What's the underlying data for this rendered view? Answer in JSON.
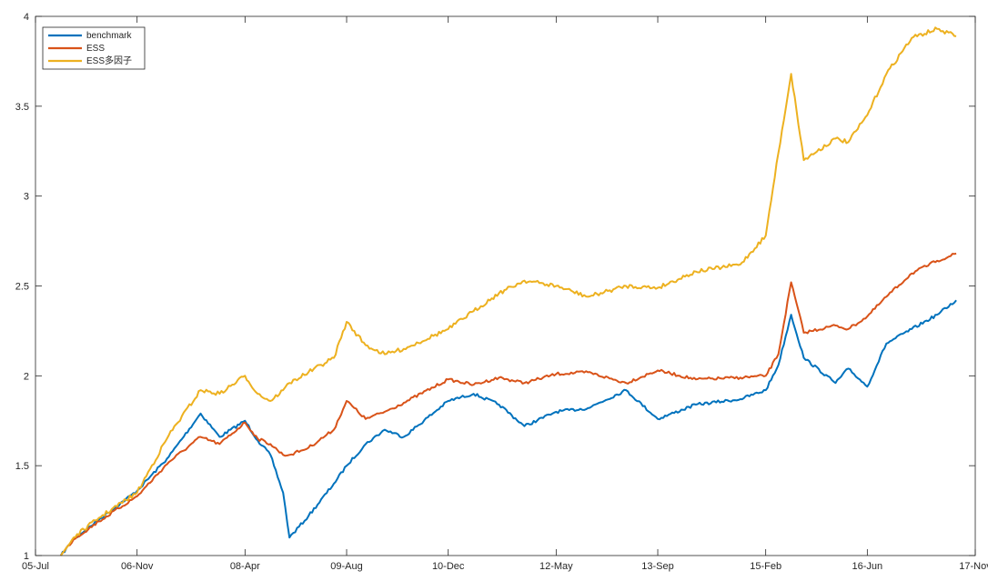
{
  "chart_data": {
    "type": "line",
    "title": "",
    "xlabel": "",
    "ylabel": "",
    "x_tick_labels": [
      "05-Jul",
      "06-Nov",
      "08-Apr",
      "09-Aug",
      "10-Dec",
      "12-May",
      "13-Sep",
      "15-Feb",
      "16-Jun",
      "17-Nov"
    ],
    "y_tick_labels": [
      "1",
      "1.5",
      "2",
      "2.5",
      "3",
      "3.5",
      "4"
    ],
    "ylim": [
      1,
      4
    ],
    "grid": false,
    "legend_position": "top-left",
    "series": [
      {
        "name": "benchmark",
        "color": "#0072BD",
        "x": [
          "05-Nov",
          "06-Jan",
          "06-May",
          "06-Nov",
          "07-Apr",
          "07-Sep",
          "07-Dec",
          "08-Apr",
          "08-Jun",
          "08-Aug",
          "08-Oct",
          "08-Nov",
          "09-Feb",
          "09-Jun",
          "09-Aug",
          "09-Nov",
          "10-Feb",
          "10-May",
          "10-Dec",
          "11-Apr",
          "11-Aug",
          "11-Dec",
          "12-May",
          "12-Oct",
          "13-Apr",
          "13-Sep",
          "14-Mar",
          "14-Oct",
          "15-Feb",
          "15-Apr",
          "15-Jun",
          "15-Aug",
          "16-Jan",
          "16-Mar",
          "16-Jun",
          "16-Sep",
          "17-Jan",
          "17-May",
          "17-Aug"
        ],
        "values": [
          1.0,
          1.09,
          1.2,
          1.36,
          1.55,
          1.79,
          1.66,
          1.75,
          1.64,
          1.56,
          1.35,
          1.1,
          1.22,
          1.4,
          1.5,
          1.62,
          1.7,
          1.66,
          1.86,
          1.9,
          1.84,
          1.72,
          1.8,
          1.82,
          1.92,
          1.76,
          1.84,
          1.87,
          1.92,
          2.06,
          2.34,
          2.1,
          1.96,
          2.04,
          1.94,
          2.18,
          2.26,
          2.34,
          2.42
        ]
      },
      {
        "name": "ESS",
        "color": "#D95319",
        "x": [
          "05-Nov",
          "06-Jan",
          "06-May",
          "06-Nov",
          "07-Apr",
          "07-Sep",
          "07-Dec",
          "08-Apr",
          "08-Jun",
          "08-Aug",
          "08-Oct",
          "08-Nov",
          "09-Feb",
          "09-Jun",
          "09-Aug",
          "09-Nov",
          "10-Feb",
          "10-May",
          "10-Dec",
          "11-Apr",
          "11-Aug",
          "11-Dec",
          "12-May",
          "12-Oct",
          "13-Apr",
          "13-Sep",
          "14-Mar",
          "14-Oct",
          "15-Feb",
          "15-Apr",
          "15-Jun",
          "15-Aug",
          "16-Jan",
          "16-Mar",
          "16-Jun",
          "16-Sep",
          "17-Jan",
          "17-May",
          "17-Aug"
        ],
        "values": [
          1.0,
          1.09,
          1.19,
          1.33,
          1.52,
          1.66,
          1.62,
          1.74,
          1.65,
          1.62,
          1.56,
          1.56,
          1.6,
          1.7,
          1.86,
          1.76,
          1.8,
          1.85,
          1.98,
          1.95,
          1.99,
          1.96,
          2.01,
          2.02,
          1.96,
          2.03,
          1.98,
          1.99,
          2.0,
          2.12,
          2.52,
          2.24,
          2.28,
          2.26,
          2.33,
          2.44,
          2.57,
          2.64,
          2.68
        ]
      },
      {
        "name": "ESS多因子",
        "color": "#EDB120",
        "x": [
          "05-Nov",
          "06-Jan",
          "06-May",
          "06-Nov",
          "07-Apr",
          "07-Sep",
          "07-Dec",
          "08-Apr",
          "08-Jun",
          "08-Aug",
          "08-Oct",
          "08-Nov",
          "09-Feb",
          "09-Jun",
          "09-Aug",
          "09-Nov",
          "10-Feb",
          "10-May",
          "10-Dec",
          "11-Apr",
          "11-Aug",
          "11-Dec",
          "12-May",
          "12-Oct",
          "13-Apr",
          "13-Sep",
          "14-Mar",
          "14-Oct",
          "15-Feb",
          "15-Apr",
          "15-Jun",
          "15-Aug",
          "16-Jan",
          "16-Mar",
          "16-Jun",
          "16-Sep",
          "17-Jan",
          "17-May",
          "17-Aug"
        ],
        "values": [
          1.0,
          1.1,
          1.21,
          1.35,
          1.67,
          1.92,
          1.9,
          2.0,
          1.9,
          1.86,
          1.92,
          1.96,
          2.02,
          2.1,
          2.3,
          2.17,
          2.12,
          2.15,
          2.26,
          2.36,
          2.46,
          2.53,
          2.5,
          2.44,
          2.5,
          2.49,
          2.58,
          2.62,
          2.78,
          3.24,
          3.68,
          3.2,
          3.32,
          3.3,
          3.45,
          3.68,
          3.88,
          3.93,
          3.89
        ]
      }
    ]
  }
}
